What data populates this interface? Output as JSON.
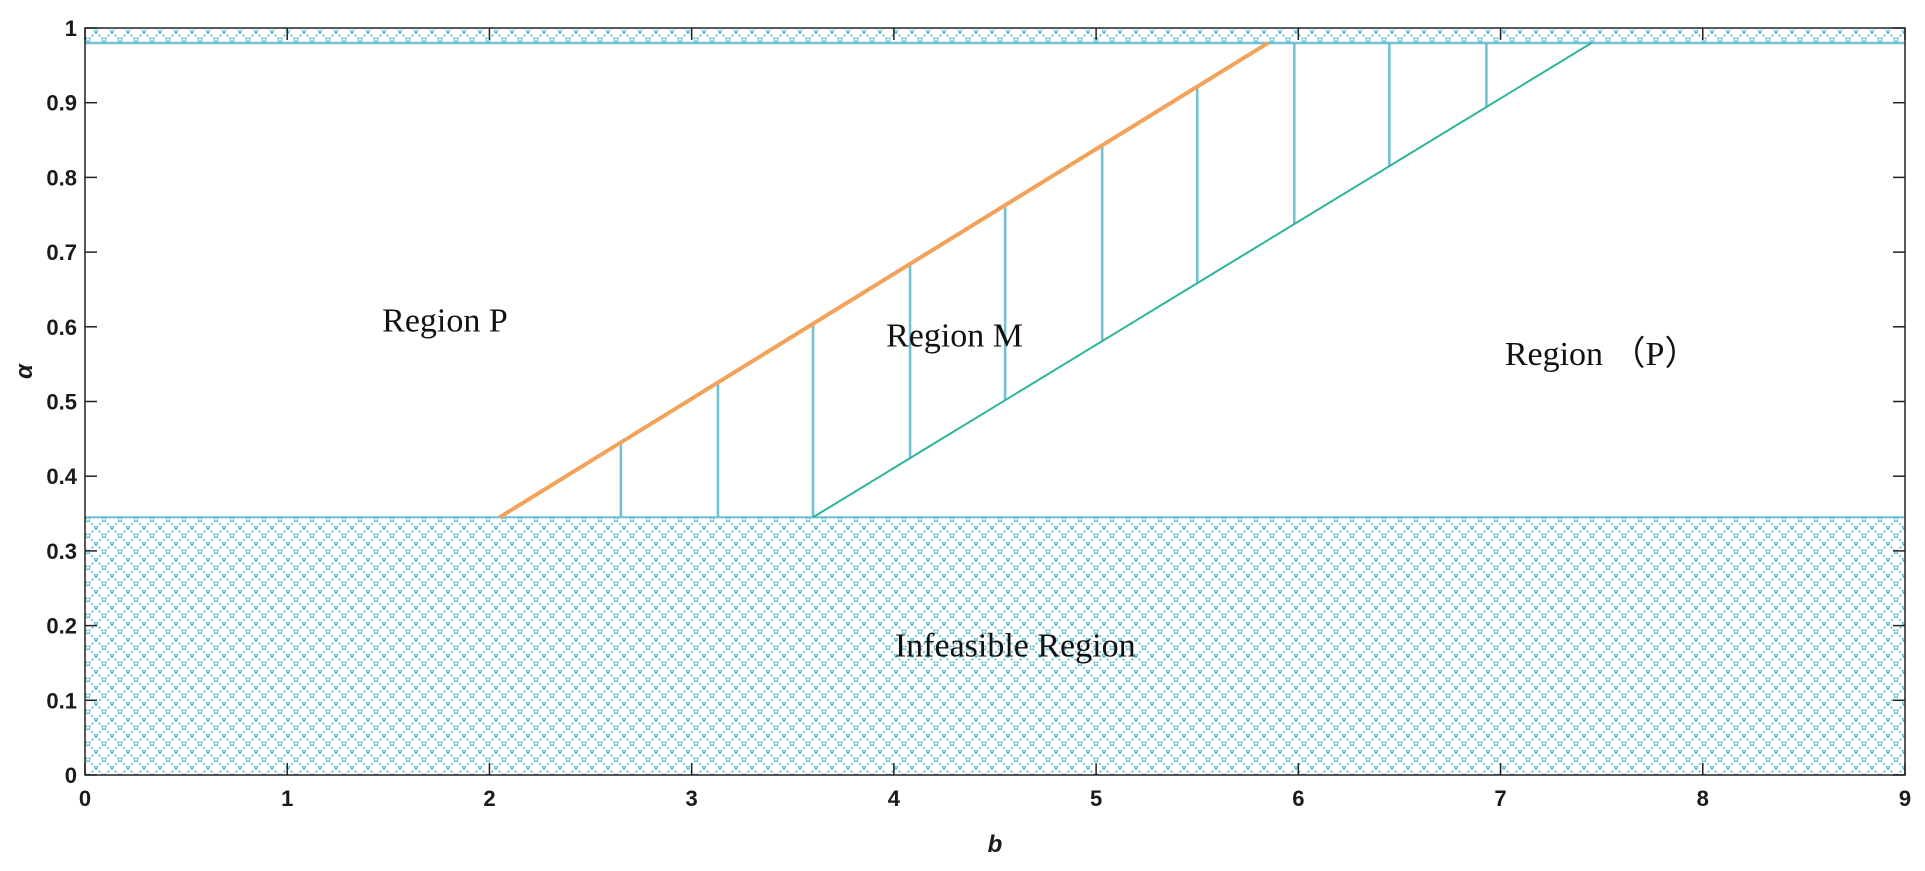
{
  "chart_data": {
    "type": "area",
    "xlabel": "b",
    "ylabel": "α",
    "xlim": [
      0,
      9
    ],
    "ylim": [
      0,
      1
    ],
    "x_ticks": [
      "0",
      "1",
      "2",
      "3",
      "4",
      "5",
      "6",
      "7",
      "8",
      "9"
    ],
    "y_ticks": [
      "0",
      "0.1",
      "0.2",
      "0.3",
      "0.4",
      "0.5",
      "0.6",
      "0.7",
      "0.8",
      "0.9",
      "1"
    ],
    "infeasible_lower": 0.345,
    "infeasible_upper": 0.98,
    "boundary_left": {
      "x": [
        2.05,
        5.85
      ],
      "y": [
        0.345,
        0.98
      ],
      "color": "#F4A259"
    },
    "boundary_right": {
      "x": [
        3.6,
        7.45
      ],
      "y": [
        0.345,
        0.98
      ],
      "color": "#2CB59A"
    },
    "hatch_color": "#6EC1D2",
    "region_m_hatch_x": [
      2.65,
      3.13,
      3.6,
      4.08,
      4.55,
      5.03,
      5.5,
      5.98,
      6.45,
      6.93
    ],
    "annotations": [
      {
        "text": "Region P",
        "x": 1.78,
        "y": 0.61
      },
      {
        "text": "Region M",
        "x": 4.3,
        "y": 0.59
      },
      {
        "text": "Region （P）",
        "x": 7.5,
        "y": 0.565
      },
      {
        "text": "Infeasible Region",
        "x": 4.6,
        "y": 0.175
      }
    ]
  }
}
